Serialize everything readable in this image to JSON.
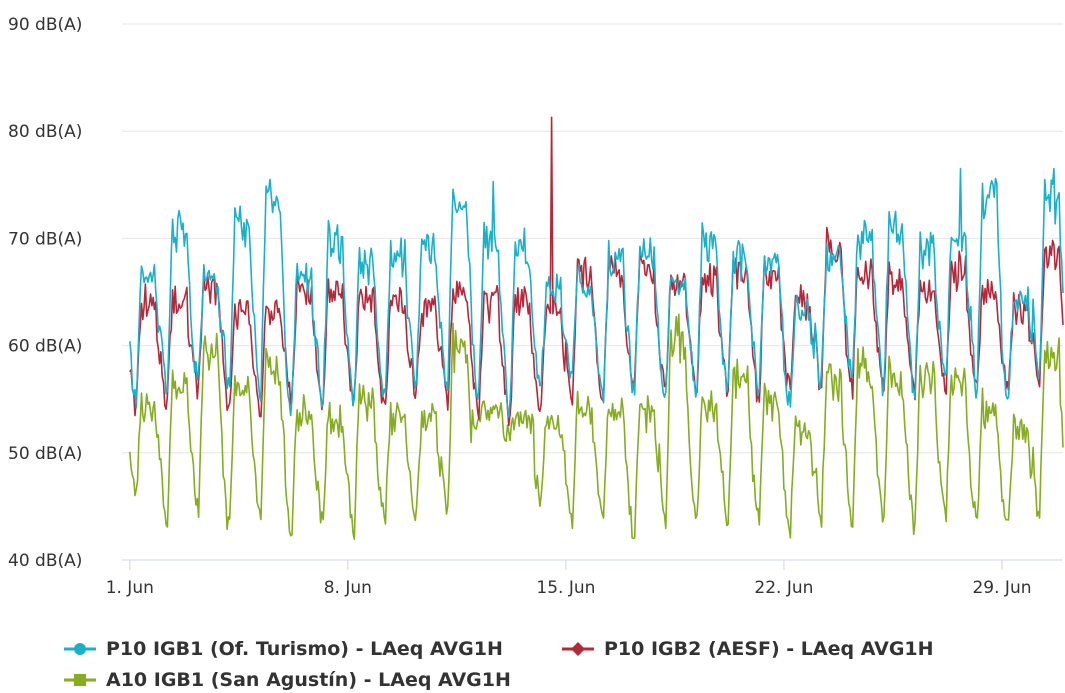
{
  "chart_data": {
    "type": "line",
    "title": "",
    "xlabel": "",
    "ylabel": "",
    "x_axis": {
      "type": "date",
      "start": "2023-06-01",
      "end": "2023-06-30",
      "ticks": [
        {
          "date": "2023-06-01",
          "label": "1. Jun"
        },
        {
          "date": "2023-06-08",
          "label": "8. Jun"
        },
        {
          "date": "2023-06-15",
          "label": "15. Jun"
        },
        {
          "date": "2023-06-22",
          "label": "22. Jun"
        },
        {
          "date": "2023-06-29",
          "label": "29. Jun"
        }
      ]
    },
    "y_axis": {
      "ylim": [
        40,
        90
      ],
      "ticks": [
        {
          "value": 40,
          "label": "40 dB(A)"
        },
        {
          "value": 50,
          "label": "50 dB(A)"
        },
        {
          "value": 60,
          "label": "60 dB(A)"
        },
        {
          "value": 70,
          "label": "70 dB(A)"
        },
        {
          "value": 80,
          "label": "80 dB(A)"
        },
        {
          "value": 90,
          "label": "90 dB(A)"
        }
      ],
      "grid": true
    },
    "legend_position": "bottom-left",
    "series": [
      {
        "name": "P10 IGB1 (Of. Turismo) - LAeq AVG1H",
        "color": "#1ab0c9",
        "marker": "circle",
        "daily_high": [
          68,
          72,
          67,
          73,
          75,
          68,
          71,
          69,
          70,
          71,
          75,
          71,
          70,
          66,
          67,
          69,
          70,
          67,
          71,
          69,
          69,
          64,
          69,
          71,
          72,
          70,
          71,
          76,
          65,
          75
        ],
        "daily_low": [
          55,
          56,
          57,
          56,
          55,
          54,
          55,
          55,
          55,
          56,
          56,
          55,
          54,
          56,
          57,
          55,
          56,
          56,
          55,
          56,
          56,
          55,
          57,
          57,
          56,
          56,
          57,
          56,
          56,
          57
        ],
        "daily_peak": [
          {
            "date": "2023-06-05",
            "value": 75.5
          },
          {
            "date": "2023-06-12",
            "value": 75.3
          },
          {
            "date": "2023-06-27",
            "value": 76.5
          },
          {
            "date": "2023-06-30",
            "value": 76.5
          }
        ]
      },
      {
        "name": "P10 IGB2 (AESF) - LAeq AVG1H",
        "color": "#b5283a",
        "marker": "diamond",
        "daily_high": [
          65,
          65,
          66,
          64,
          64,
          66,
          66,
          65,
          65,
          64,
          66,
          65,
          65,
          64,
          68,
          68,
          68,
          67,
          67,
          68,
          68,
          65,
          70,
          68,
          67,
          66,
          68,
          66,
          64,
          70
        ],
        "daily_low": [
          54,
          55,
          56,
          54,
          54,
          55,
          55,
          55,
          54,
          56,
          55,
          54,
          53,
          54,
          55,
          55,
          56,
          56,
          56,
          56,
          55,
          56,
          56,
          56,
          56,
          56,
          56,
          56,
          56,
          56
        ],
        "daily_peak": [
          {
            "date": "2023-06-14",
            "value": 81.3
          }
        ]
      },
      {
        "name": "A10 IGB1 (San Agustín) - LAeq AVG1H",
        "color": "#86ac20",
        "marker": "square",
        "daily_high": [
          55,
          57,
          61,
          58,
          59,
          55,
          54,
          56,
          54,
          54,
          61,
          54,
          53,
          53,
          55,
          55,
          55,
          62,
          55,
          58,
          56,
          53,
          58,
          59,
          58,
          58,
          58,
          55,
          53,
          60
        ],
        "daily_low": [
          46,
          44,
          45,
          43,
          44,
          43,
          44,
          43,
          44,
          44,
          45,
          53,
          52,
          46,
          44,
          44,
          42,
          44,
          44,
          44,
          44,
          43,
          44,
          44,
          44,
          43,
          44,
          44,
          43,
          44
        ],
        "daily_peak": []
      }
    ]
  }
}
